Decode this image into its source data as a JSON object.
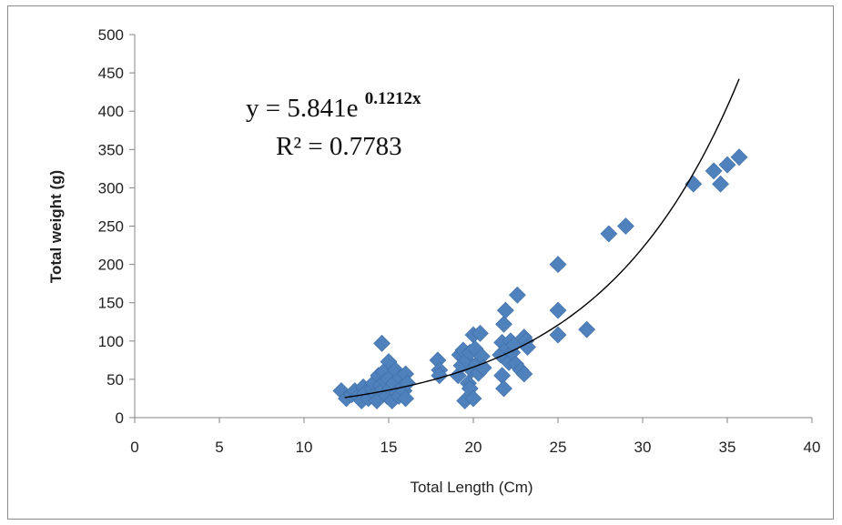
{
  "chart_data": {
    "type": "scatter",
    "title": "",
    "xlabel": "Total Length (Cm)",
    "ylabel": "Total weight (g)",
    "xlim": [
      0,
      40
    ],
    "ylim": [
      0,
      500
    ],
    "xticks": [
      0,
      5,
      10,
      15,
      20,
      25,
      30,
      35,
      40
    ],
    "yticks": [
      0,
      50,
      100,
      150,
      200,
      250,
      300,
      350,
      400,
      450,
      500
    ],
    "grid": false,
    "legend": "none",
    "marker": "diamond",
    "marker_color": "#4F81BD",
    "trendline": {
      "type": "exponential",
      "a": 5.841,
      "b": 0.1212,
      "x_range": [
        12.4,
        35.7
      ],
      "color": "#000000",
      "equation_prefix": "y = 5.841e",
      "equation_exponent": "0.1212x",
      "r2_label": "R² = 0.7783"
    },
    "series": [
      {
        "points": [
          [
            12.2,
            35
          ],
          [
            12.5,
            25
          ],
          [
            12.8,
            30
          ],
          [
            13.0,
            35
          ],
          [
            13.2,
            28
          ],
          [
            13.4,
            22
          ],
          [
            13.5,
            40
          ],
          [
            13.6,
            32
          ],
          [
            13.8,
            25
          ],
          [
            14.0,
            38
          ],
          [
            14.1,
            45
          ],
          [
            14.2,
            30
          ],
          [
            14.3,
            22
          ],
          [
            14.4,
            55
          ],
          [
            14.5,
            42
          ],
          [
            14.6,
            35
          ],
          [
            14.6,
            97
          ],
          [
            14.7,
            60
          ],
          [
            14.8,
            48
          ],
          [
            14.9,
            28
          ],
          [
            15.0,
            73
          ],
          [
            15.0,
            50
          ],
          [
            15.1,
            38
          ],
          [
            15.2,
            22
          ],
          [
            15.3,
            45
          ],
          [
            15.4,
            62
          ],
          [
            15.5,
            33
          ],
          [
            15.6,
            28
          ],
          [
            15.7,
            52
          ],
          [
            15.8,
            40
          ],
          [
            15.9,
            35
          ],
          [
            16.0,
            57
          ],
          [
            16.0,
            25
          ],
          [
            16.1,
            45
          ],
          [
            17.9,
            75
          ],
          [
            18.0,
            62
          ],
          [
            18.0,
            55
          ],
          [
            19.1,
            55
          ],
          [
            19.2,
            82
          ],
          [
            19.3,
            68
          ],
          [
            19.4,
            88
          ],
          [
            19.5,
            22
          ],
          [
            19.6,
            75
          ],
          [
            19.7,
            45
          ],
          [
            19.8,
            85
          ],
          [
            19.8,
            38
          ],
          [
            19.9,
            62
          ],
          [
            20.0,
            108
          ],
          [
            20.0,
            25
          ],
          [
            20.1,
            90
          ],
          [
            20.2,
            70
          ],
          [
            20.3,
            58
          ],
          [
            20.4,
            110
          ],
          [
            20.5,
            80
          ],
          [
            20.6,
            65
          ],
          [
            21.6,
            82
          ],
          [
            21.7,
            98
          ],
          [
            21.7,
            55
          ],
          [
            21.8,
            122
          ],
          [
            21.8,
            38
          ],
          [
            21.9,
            140
          ],
          [
            22.0,
            90
          ],
          [
            22.1,
            72
          ],
          [
            22.2,
            100
          ],
          [
            22.3,
            85
          ],
          [
            22.4,
            95
          ],
          [
            22.5,
            70
          ],
          [
            22.6,
            160
          ],
          [
            22.8,
            62
          ],
          [
            23.0,
            105
          ],
          [
            23.0,
            57
          ],
          [
            23.1,
            100
          ],
          [
            23.2,
            92
          ],
          [
            25.0,
            200
          ],
          [
            25.0,
            140
          ],
          [
            25.0,
            108
          ],
          [
            26.7,
            115
          ],
          [
            28.0,
            240
          ],
          [
            29.0,
            250
          ],
          [
            33.0,
            305
          ],
          [
            34.2,
            322
          ],
          [
            34.6,
            305
          ],
          [
            35.0,
            330
          ],
          [
            35.7,
            340
          ]
        ]
      }
    ]
  }
}
